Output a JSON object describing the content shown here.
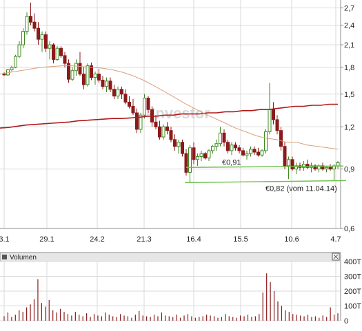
{
  "colors": {
    "background": "#ffffff",
    "grid": "#d9d9d9",
    "frame": "#8c8c8c",
    "candle_up_fill": "#ffffff",
    "candle_up_stroke": "#3d8a1f",
    "candle_down": "#8b1a1a",
    "ma_long": "#b01a1a",
    "ma_short": "#d9a07a",
    "support": "#6cbf4a",
    "volume_bar": "#8b1a1a",
    "watermark": "#c8c8c8",
    "text": "#222222",
    "header_bg": "#e6e6e6"
  },
  "watermark": "-Investor",
  "chart_data": [
    {
      "type": "candlestick",
      "title": "",
      "xlabel": "",
      "ylabel": "",
      "ylim": [
        0.6,
        2.85
      ],
      "y_scale": "log",
      "grid": true,
      "x_tick_labels": [
        "3.1",
        "29.1",
        "24.2",
        "21.3",
        "16.4",
        "15.5",
        "10.6",
        "4.7"
      ],
      "y_tick_labels": [
        "2,7",
        "2,4",
        "2,1",
        "1,8",
        "1,5",
        "1,2",
        "0,9",
        "0,6"
      ],
      "y_tick_values": [
        2.7,
        2.4,
        2.1,
        1.8,
        1.5,
        1.2,
        0.9,
        0.6
      ],
      "series": [
        {
          "values": [
            [
              1.72,
              1.74,
              1.7,
              1.71
            ],
            [
              1.71,
              1.78,
              1.7,
              1.77
            ],
            [
              1.77,
              1.82,
              1.75,
              1.8
            ],
            [
              1.8,
              1.96,
              1.79,
              1.94
            ],
            [
              1.94,
              2.15,
              1.92,
              2.1
            ],
            [
              2.1,
              2.35,
              2.05,
              2.3
            ],
            [
              2.3,
              2.62,
              2.25,
              2.55
            ],
            [
              2.55,
              2.8,
              2.4,
              2.45
            ],
            [
              2.45,
              2.6,
              2.3,
              2.35
            ],
            [
              2.35,
              2.45,
              2.1,
              2.18
            ],
            [
              2.18,
              2.3,
              2.0,
              2.25
            ],
            [
              2.25,
              2.3,
              2.0,
              2.05
            ],
            [
              2.05,
              2.15,
              1.9,
              2.1
            ],
            [
              2.1,
              2.12,
              1.85,
              1.9
            ],
            [
              1.9,
              2.08,
              1.88,
              2.05
            ],
            [
              2.05,
              2.08,
              1.92,
              1.95
            ],
            [
              1.95,
              2.0,
              1.8,
              1.85
            ],
            [
              1.85,
              1.9,
              1.62,
              1.66
            ],
            [
              1.66,
              1.8,
              1.64,
              1.76
            ],
            [
              1.76,
              1.9,
              1.7,
              1.85
            ],
            [
              1.85,
              2.0,
              1.7,
              1.72
            ],
            [
              1.72,
              1.8,
              1.55,
              1.6
            ],
            [
              1.6,
              1.85,
              1.58,
              1.82
            ],
            [
              1.82,
              1.86,
              1.65,
              1.68
            ],
            [
              1.68,
              1.75,
              1.6,
              1.72
            ],
            [
              1.72,
              1.78,
              1.62,
              1.65
            ],
            [
              1.65,
              1.7,
              1.55,
              1.58
            ],
            [
              1.58,
              1.68,
              1.52,
              1.64
            ],
            [
              1.64,
              1.68,
              1.52,
              1.55
            ],
            [
              1.55,
              1.6,
              1.45,
              1.48
            ],
            [
              1.48,
              1.58,
              1.45,
              1.55
            ],
            [
              1.55,
              1.58,
              1.45,
              1.5
            ],
            [
              1.5,
              1.55,
              1.4,
              1.42
            ],
            [
              1.42,
              1.48,
              1.36,
              1.38
            ],
            [
              1.38,
              1.45,
              1.3,
              1.32
            ],
            [
              1.32,
              1.36,
              1.15,
              1.18
            ],
            [
              1.18,
              1.32,
              1.15,
              1.3
            ],
            [
              1.3,
              1.5,
              1.27,
              1.46
            ],
            [
              1.46,
              1.48,
              1.32,
              1.35
            ],
            [
              1.35,
              1.38,
              1.2,
              1.24
            ],
            [
              1.24,
              1.3,
              1.18,
              1.2
            ],
            [
              1.2,
              1.25,
              1.1,
              1.12
            ],
            [
              1.12,
              1.22,
              1.1,
              1.2
            ],
            [
              1.2,
              1.24,
              1.14,
              1.17
            ],
            [
              1.17,
              1.2,
              1.08,
              1.1
            ],
            [
              1.1,
              1.14,
              1.02,
              1.05
            ],
            [
              1.05,
              1.1,
              1.0,
              1.08
            ],
            [
              1.08,
              1.1,
              0.98,
              1.0
            ],
            [
              1.0,
              1.03,
              0.86,
              0.88
            ],
            [
              0.88,
              1.06,
              0.82,
              1.04
            ],
            [
              1.04,
              1.08,
              0.93,
              0.96
            ],
            [
              0.96,
              1.0,
              0.92,
              0.98
            ],
            [
              0.98,
              1.02,
              0.95,
              1.0
            ],
            [
              1.0,
              1.01,
              0.96,
              0.97
            ],
            [
              0.97,
              1.03,
              0.95,
              1.02
            ],
            [
              1.02,
              1.06,
              1.0,
              1.05
            ],
            [
              1.05,
              1.1,
              1.02,
              1.07
            ],
            [
              1.07,
              1.2,
              1.05,
              1.15
            ],
            [
              1.15,
              1.18,
              1.05,
              1.08
            ],
            [
              1.08,
              1.1,
              1.0,
              1.02
            ],
            [
              1.02,
              1.08,
              0.99,
              1.06
            ],
            [
              1.06,
              1.08,
              1.02,
              1.04
            ],
            [
              1.04,
              1.06,
              1.0,
              1.02
            ],
            [
              1.02,
              1.04,
              0.98,
              0.99
            ],
            [
              0.99,
              1.02,
              0.96,
              1.0
            ],
            [
              1.0,
              1.05,
              0.98,
              1.03
            ],
            [
              1.03,
              1.05,
              0.99,
              1.01
            ],
            [
              1.01,
              1.04,
              0.98,
              0.99
            ],
            [
              0.99,
              1.03,
              0.98,
              1.02
            ],
            [
              1.02,
              1.18,
              1.0,
              1.16
            ],
            [
              1.16,
              1.62,
              1.14,
              1.35
            ],
            [
              1.35,
              1.42,
              1.22,
              1.26
            ],
            [
              1.26,
              1.3,
              1.14,
              1.17
            ],
            [
              1.17,
              1.2,
              1.02,
              1.05
            ],
            [
              1.05,
              1.08,
              0.9,
              0.92
            ],
            [
              0.92,
              0.98,
              0.84,
              0.96
            ],
            [
              0.96,
              0.98,
              0.89,
              0.9
            ],
            [
              0.9,
              0.94,
              0.87,
              0.92
            ],
            [
              0.92,
              0.94,
              0.89,
              0.91
            ],
            [
              0.91,
              0.95,
              0.89,
              0.93
            ],
            [
              0.93,
              0.96,
              0.9,
              0.91
            ],
            [
              0.91,
              0.94,
              0.88,
              0.92
            ],
            [
              0.92,
              0.93,
              0.89,
              0.9
            ],
            [
              0.9,
              0.93,
              0.88,
              0.92
            ],
            [
              0.92,
              0.94,
              0.89,
              0.9
            ],
            [
              0.9,
              0.92,
              0.88,
              0.91
            ],
            [
              0.91,
              0.93,
              0.89,
              0.9
            ],
            [
              0.9,
              0.93,
              0.83,
              0.92
            ],
            [
              0.92,
              0.95,
              0.9,
              0.94
            ]
          ]
        },
        {
          "values": [
            1.19,
            1.195,
            1.205,
            1.215,
            1.22,
            1.225,
            1.23,
            1.235,
            1.24,
            1.25,
            1.255,
            1.26,
            1.265,
            1.27,
            1.27,
            1.275,
            1.28,
            1.29,
            1.29,
            1.3,
            1.3,
            1.31,
            1.31,
            1.31,
            1.32,
            1.32,
            1.33,
            1.33,
            1.34,
            1.34,
            1.35,
            1.35,
            1.36,
            1.37,
            1.38,
            1.38,
            1.39,
            1.39,
            1.4,
            1.4
          ]
        },
        {
          "values": [
            1.72,
            1.74,
            1.76,
            1.78,
            1.8,
            1.81,
            1.82,
            1.82,
            1.81,
            1.8,
            1.79,
            1.77,
            1.74,
            1.7,
            1.65,
            1.59,
            1.53,
            1.47,
            1.41,
            1.36,
            1.31,
            1.27,
            1.23,
            1.19,
            1.16,
            1.13,
            1.11,
            1.1,
            1.08,
            1.08,
            1.06,
            1.05,
            1.04,
            1.03
          ]
        },
        {
          "values": [
            0.91,
            0.82
          ]
        }
      ],
      "annotations": [
        "€0,91",
        "€0,82 (vom 11.04.14)"
      ]
    },
    {
      "type": "bar",
      "title": "Volumen",
      "ylim": [
        0,
        400
      ],
      "y_tick_labels": [
        "400T",
        "300T",
        "200T",
        "100T",
        "0"
      ],
      "y_tick_values": [
        400,
        300,
        200,
        100,
        0
      ],
      "values": [
        30,
        55,
        25,
        40,
        70,
        60,
        90,
        110,
        145,
        280,
        120,
        95,
        140,
        70,
        55,
        80,
        60,
        45,
        35,
        60,
        40,
        30,
        50,
        25,
        45,
        35,
        30,
        55,
        40,
        30,
        25,
        45,
        35,
        30,
        20,
        40,
        65,
        35,
        30,
        25,
        40,
        30,
        55,
        35,
        30,
        25,
        40,
        20,
        35,
        45,
        30,
        20,
        25,
        30,
        40,
        35,
        30,
        20,
        25,
        45,
        30,
        25,
        20,
        35,
        30,
        40,
        25,
        30,
        45,
        190,
        320,
        260,
        200,
        130,
        100,
        70,
        60,
        45,
        40,
        35,
        30,
        40,
        25,
        30,
        20,
        35,
        25,
        90,
        40,
        50
      ]
    }
  ]
}
